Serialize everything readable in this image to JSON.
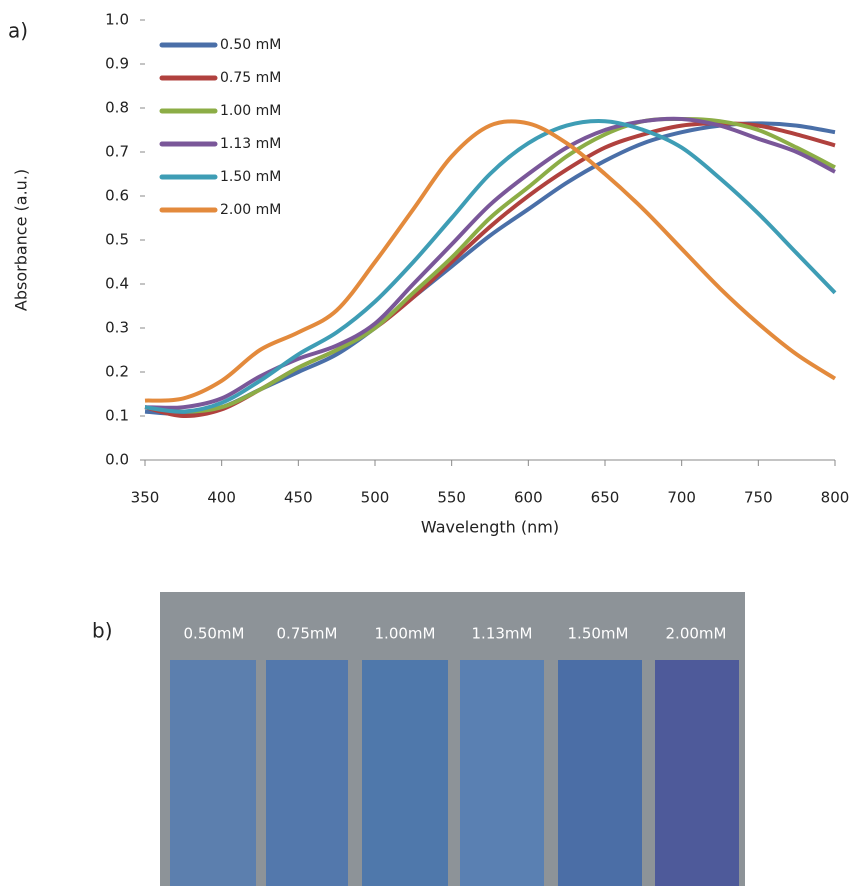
{
  "chart_data": {
    "type": "line",
    "x_label": "Wavelength (nm)",
    "y_label": "Absorbance (a.u.)",
    "x": [
      350,
      375,
      400,
      425,
      450,
      475,
      500,
      525,
      550,
      575,
      600,
      625,
      650,
      675,
      700,
      725,
      750,
      775,
      800
    ],
    "series": [
      {
        "name": "0.50 mM",
        "color": "#4a6fa8",
        "values": [
          0.11,
          0.105,
          0.12,
          0.16,
          0.2,
          0.24,
          0.3,
          0.37,
          0.44,
          0.51,
          0.57,
          0.63,
          0.68,
          0.72,
          0.745,
          0.76,
          0.765,
          0.76,
          0.745
        ]
      },
      {
        "name": "0.75 mM",
        "color": "#b0413e",
        "values": [
          0.12,
          0.1,
          0.115,
          0.16,
          0.21,
          0.25,
          0.3,
          0.37,
          0.45,
          0.53,
          0.6,
          0.66,
          0.71,
          0.74,
          0.76,
          0.765,
          0.76,
          0.74,
          0.715
        ]
      },
      {
        "name": "1.00 mM",
        "color": "#8cad46",
        "values": [
          0.12,
          0.11,
          0.12,
          0.16,
          0.21,
          0.25,
          0.3,
          0.38,
          0.46,
          0.55,
          0.62,
          0.69,
          0.74,
          0.77,
          0.775,
          0.77,
          0.75,
          0.71,
          0.665
        ]
      },
      {
        "name": "1.13 mM",
        "color": "#7a5799",
        "values": [
          0.12,
          0.12,
          0.14,
          0.19,
          0.23,
          0.26,
          0.31,
          0.4,
          0.49,
          0.58,
          0.65,
          0.71,
          0.75,
          0.77,
          0.775,
          0.76,
          0.73,
          0.7,
          0.655
        ]
      },
      {
        "name": "1.50 mM",
        "color": "#3e9db5",
        "values": [
          0.12,
          0.11,
          0.13,
          0.18,
          0.24,
          0.29,
          0.36,
          0.45,
          0.55,
          0.65,
          0.72,
          0.76,
          0.77,
          0.75,
          0.71,
          0.64,
          0.56,
          0.47,
          0.38
        ]
      },
      {
        "name": "2.00 mM",
        "color": "#e38a3c",
        "values": [
          0.135,
          0.14,
          0.18,
          0.25,
          0.29,
          0.34,
          0.45,
          0.57,
          0.69,
          0.76,
          0.765,
          0.72,
          0.65,
          0.57,
          0.48,
          0.39,
          0.31,
          0.24,
          0.185
        ]
      }
    ],
    "xlim": [
      350,
      800
    ],
    "xticks": [
      350,
      400,
      450,
      500,
      550,
      600,
      650,
      700,
      750,
      800
    ],
    "ylim": [
      0,
      1
    ],
    "yticks": [
      {
        "value": 0,
        "label": "0.0"
      },
      0.1,
      0.2,
      0.3,
      0.4,
      0.5,
      0.6,
      0.7,
      0.8,
      0.9,
      {
        "value": 1,
        "label": "1.0"
      }
    ],
    "grid": false,
    "legend": "upper left"
  },
  "panel_labels": [
    "a)",
    "b)"
  ],
  "photo": {
    "labels": [
      "0.50mM",
      "0.75mM",
      "1.00mM",
      "1.13mM",
      "1.50mM",
      "2.00mM"
    ]
  }
}
